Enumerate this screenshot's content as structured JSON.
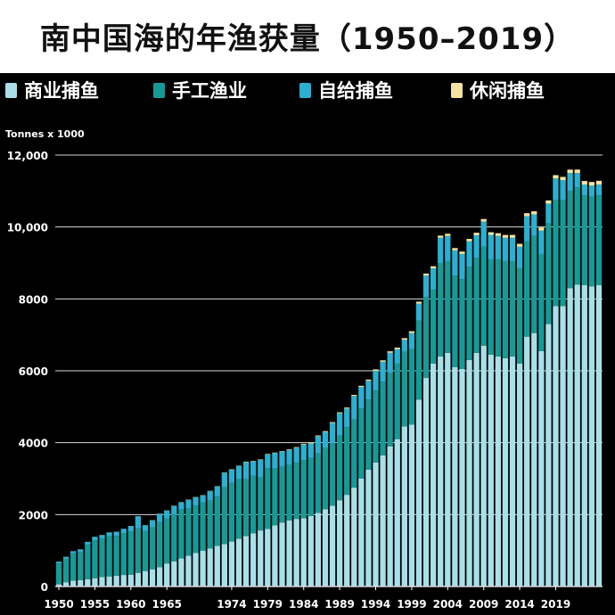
{
  "title": "南中国海的年渔获量（1950–2019）",
  "chart_data": {
    "type": "bar",
    "stacked": true,
    "ylabel": "Tonnes x 1000",
    "ylim": [
      0,
      12000
    ],
    "yticks": [
      0,
      2000,
      4000,
      6000,
      8000,
      10000,
      12000
    ],
    "ytick_labels": [
      "0",
      "2000",
      "4000",
      "6000",
      "8000",
      "10,000",
      "12,000"
    ],
    "grid": true,
    "legend_position": "top",
    "xtick_labels": [
      "1950",
      "1955",
      "1960",
      "1965",
      "1974",
      "1979",
      "1984",
      "1989",
      "1994",
      "1999",
      "2004",
      "2009",
      "2014",
      "2019"
    ],
    "series": [
      {
        "name": "商业捕鱼",
        "color": "#a9dfe8",
        "values": [
          60,
          120,
          160,
          180,
          200,
          230,
          260,
          280,
          300,
          320,
          330,
          380,
          430,
          480,
          540,
          640,
          700,
          780,
          860,
          930,
          1000,
          1060,
          1130,
          1180,
          1250,
          1330,
          1400,
          1480,
          1560,
          1600,
          1700,
          1780,
          1840,
          1880,
          1900,
          1960,
          2050,
          2150,
          2250,
          2400,
          2550,
          2750,
          3000,
          3250,
          3450,
          3650,
          3900,
          4100,
          4450,
          4500,
          5200,
          5800,
          6200,
          6400,
          6500,
          6100,
          6050,
          6300,
          6500,
          6700,
          6450,
          6400,
          6350,
          6400,
          6200,
          6950,
          7050,
          6550,
          7300,
          7800,
          7800,
          8300,
          8400,
          8380,
          8350,
          8380
        ]
      },
      {
        "name": "手工渔业",
        "color": "#159a98",
        "values": [
          580,
          650,
          760,
          780,
          960,
          1060,
          1080,
          1120,
          1110,
          1160,
          1200,
          1240,
          1110,
          1170,
          1250,
          1250,
          1310,
          1360,
          1320,
          1320,
          1340,
          1330,
          1370,
          1580,
          1640,
          1660,
          1580,
          1600,
          1480,
          1690,
          1580,
          1550,
          1540,
          1560,
          1620,
          1620,
          1650,
          1700,
          1750,
          1800,
          1880,
          1900,
          1950,
          1950,
          2000,
          2050,
          2050,
          2100,
          2080,
          2100,
          2200,
          2250,
          2050,
          2600,
          2550,
          2550,
          2500,
          2600,
          2650,
          2750,
          2650,
          2700,
          2700,
          2650,
          2650,
          2650,
          2700,
          2700,
          2800,
          2950,
          2950,
          2700,
          2700,
          2500,
          2500,
          2500
        ]
      },
      {
        "name": "自给捕鱼",
        "color": "#2ab0d0",
        "values": [
          50,
          55,
          60,
          70,
          80,
          90,
          90,
          100,
          110,
          120,
          150,
          330,
          160,
          190,
          230,
          220,
          230,
          200,
          230,
          230,
          190,
          260,
          280,
          400,
          360,
          360,
          480,
          400,
          480,
          380,
          430,
          420,
          420,
          420,
          430,
          400,
          480,
          450,
          550,
          620,
          520,
          650,
          600,
          520,
          550,
          550,
          550,
          400,
          330,
          450,
          470,
          600,
          600,
          700,
          700,
          700,
          700,
          700,
          620,
          700,
          680,
          650,
          650,
          650,
          600,
          700,
          600,
          650,
          550,
          600,
          550,
          500,
          400,
          300,
          300,
          300
        ]
      },
      {
        "name": "休闲捕鱼",
        "color": "#f3e3a0",
        "values": [
          2,
          2,
          2,
          3,
          3,
          3,
          3,
          4,
          4,
          4,
          5,
          5,
          5,
          6,
          6,
          6,
          7,
          7,
          8,
          8,
          9,
          9,
          10,
          10,
          11,
          11,
          12,
          13,
          14,
          15,
          15,
          16,
          17,
          18,
          19,
          20,
          21,
          22,
          23,
          25,
          27,
          30,
          32,
          35,
          38,
          40,
          42,
          45,
          48,
          50,
          52,
          55,
          58,
          60,
          62,
          64,
          66,
          68,
          70,
          72,
          74,
          76,
          78,
          80,
          82,
          84,
          86,
          88,
          90,
          92,
          94,
          96,
          98,
          100,
          102,
          104
        ]
      }
    ]
  }
}
